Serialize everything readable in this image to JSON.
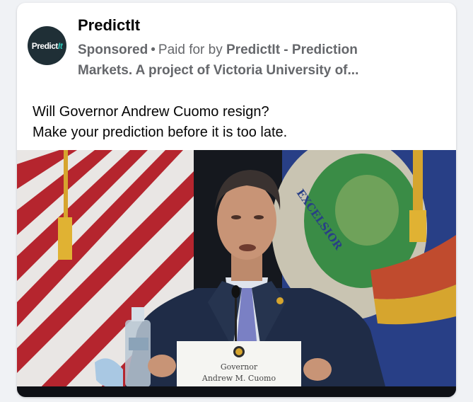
{
  "ad": {
    "page_name": "PredictIt",
    "logo_text_main": "Predict",
    "logo_text_accent": "It",
    "sponsored_label": "Sponsored",
    "separator": "•",
    "paid_for_prefix": "Paid for by",
    "payer_line1": "PredictIt - Prediction",
    "payer_line2": "Markets. A project of Victoria University of...",
    "text_line1": "Will Governor Andrew Cuomo resign?",
    "text_line2": "Make your prediction before it is too late."
  },
  "photo": {
    "nameplate_title": "Governor",
    "nameplate_name": "Andrew M. Cuomo",
    "flag_motto": "EXCELSIOR"
  }
}
